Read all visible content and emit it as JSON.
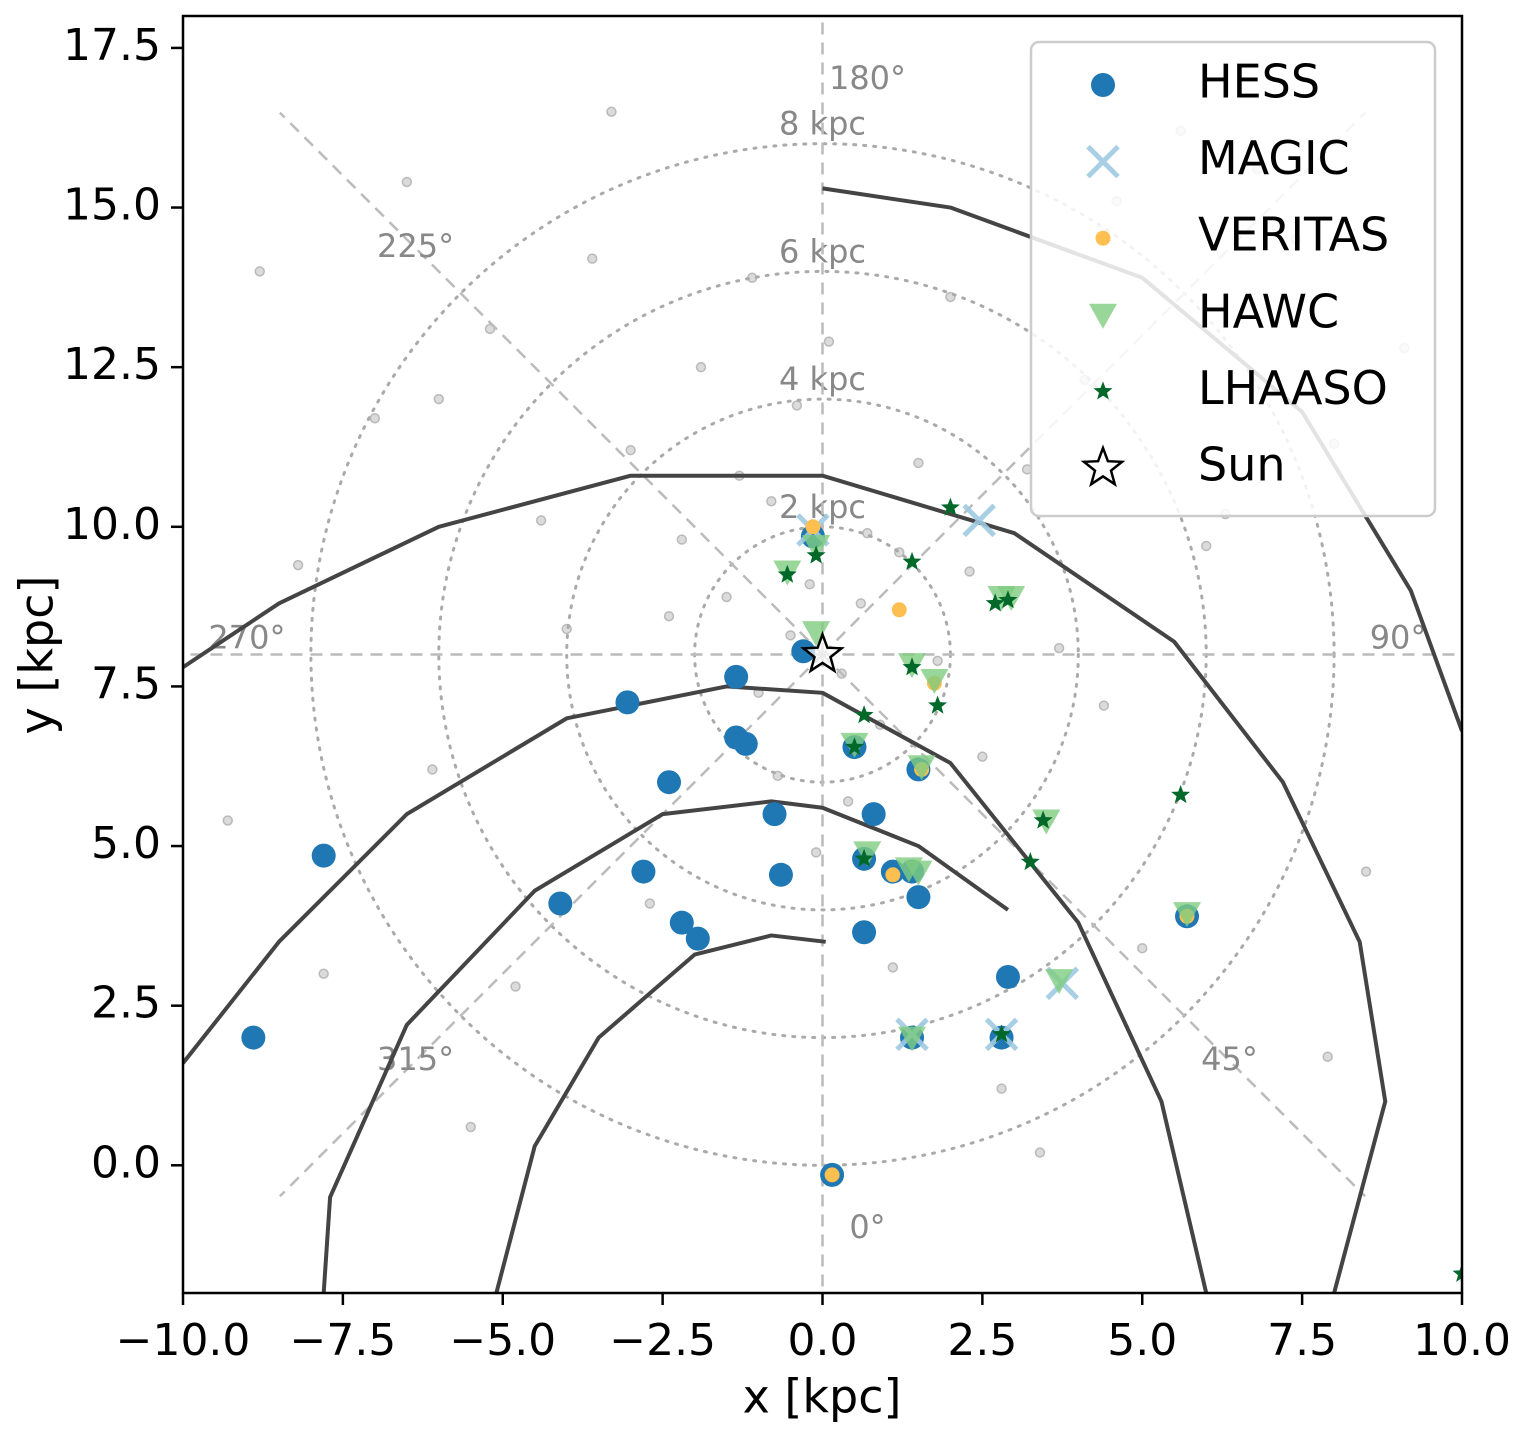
{
  "chart_data": {
    "type": "scatter",
    "xlabel": "x [kpc]",
    "ylabel": "y [kpc]",
    "xlim": [
      -10,
      10
    ],
    "ylim": [
      -2,
      18
    ],
    "xticks": [
      {
        "value": -10,
        "label": "−10.0"
      },
      {
        "value": -7.5,
        "label": "−7.5"
      },
      {
        "value": -5,
        "label": "−5.0"
      },
      {
        "value": -2.5,
        "label": "−2.5"
      },
      {
        "value": 0,
        "label": "0.0"
      },
      {
        "value": 2.5,
        "label": "2.5"
      },
      {
        "value": 5,
        "label": "5.0"
      },
      {
        "value": 7.5,
        "label": "7.5"
      },
      {
        "value": 10,
        "label": "10.0"
      }
    ],
    "yticks": [
      {
        "value": 0,
        "label": "0.0"
      },
      2.5,
      {
        "value": 5,
        "label": "5.0"
      },
      7.5,
      {
        "value": 10,
        "label": "10.0"
      },
      12.5,
      {
        "value": 15,
        "label": "15.0"
      },
      17.5
    ],
    "legend": "upper right",
    "sun": {
      "name": "Sun",
      "x": 0,
      "y": 8
    },
    "rings": [
      2,
      4,
      6,
      8
    ],
    "ring_labels": [
      "2 kpc",
      "4 kpc",
      "6 kpc",
      "8 kpc"
    ],
    "angles": [
      0,
      45,
      90,
      135,
      180,
      225,
      270,
      315
    ],
    "angle_labels": [
      "0°",
      "45°",
      "90°",
      null,
      "180°",
      "225°",
      "270°",
      "315°"
    ],
    "arms": [
      {
        "x": [
          0.05,
          -0.8,
          -2,
          -3.5,
          -4.5,
          -5.1
        ],
        "y": [
          3.5,
          3.6,
          3.3,
          2,
          0.3,
          -2
        ]
      },
      {
        "x": [
          2.9,
          1.5,
          0,
          -0.8,
          -2.5,
          -4.5,
          -6.5,
          -7.7,
          -7.8
        ],
        "y": [
          4.0,
          5.0,
          5.6,
          5.7,
          5.5,
          4.3,
          2.2,
          -0.5,
          -2
        ]
      },
      {
        "x": [
          6.0,
          5.3,
          4.0,
          2,
          0,
          -1.5,
          -4,
          -6.5,
          -8.5,
          -10
        ],
        "y": [
          -2,
          1,
          3.8,
          6.3,
          7.4,
          7.5,
          7,
          5.5,
          3.5,
          1.6
        ]
      },
      {
        "x": [
          8,
          8.8,
          8.4,
          7.2,
          5.5,
          3,
          0,
          -3,
          -6,
          -8.5,
          -10
        ],
        "y": [
          -2,
          1,
          3.5,
          6,
          8.2,
          9.9,
          10.8,
          10.8,
          10,
          8.8,
          7.8
        ]
      },
      {
        "x": [
          10,
          9.2,
          7.5,
          5,
          2,
          0
        ],
        "y": [
          6.8,
          9,
          11.8,
          13.9,
          15,
          15.3
        ]
      }
    ],
    "background": {
      "color": "#999999",
      "x": [
        -0.5,
        0.3,
        -0.2,
        0.6,
        -1.0,
        1.2,
        -1.5,
        0.9,
        -0.8,
        1.8,
        -2.2,
        2.5,
        -3.0,
        3.2,
        -4.0,
        4.1,
        -5.2,
        5.0,
        -6.1,
        6.3,
        -7.0,
        7.4,
        -8.2,
        8.5,
        -9.3,
        9.1,
        -0.4,
        0.4,
        -1.9,
        2.0,
        -2.7,
        2.8,
        -3.6,
        3.7,
        -4.8,
        4.6,
        0.1,
        -0.1,
        1.5,
        -1.3,
        -6.5,
        6.8,
        -7.8,
        7.9,
        -5.5,
        5.6,
        -3.3,
        3.4,
        -1.1,
        1.1,
        0.7,
        -0.7,
        2.3,
        -2.4,
        4.4,
        -4.4,
        6.0,
        -6.0,
        8.0,
        -8.8
      ],
      "y": [
        8.3,
        7.7,
        9.1,
        8.8,
        7.4,
        9.6,
        8.9,
        6.9,
        10.4,
        7.9,
        9.8,
        6.4,
        11.2,
        10.9,
        8.4,
        12.3,
        13.1,
        3.4,
        6.2,
        10.2,
        11.7,
        14.5,
        9.4,
        4.6,
        5.4,
        12.8,
        11.9,
        5.7,
        12.5,
        13.6,
        4.1,
        1.2,
        14.2,
        8.1,
        2.8,
        15.1,
        12.9,
        4.9,
        11.0,
        10.8,
        15.4,
        15.6,
        3.0,
        1.7,
        0.6,
        16.2,
        16.5,
        0.2,
        13.9,
        3.1,
        9.9,
        6.1,
        9.3,
        8.6,
        7.2,
        10.1,
        9.7,
        12.0,
        11.3,
        14.0
      ]
    },
    "series": [
      {
        "name": "HESS",
        "color": "#1f77b4",
        "marker": "o",
        "x": [
          -8.9,
          -7.8,
          -4.1,
          -3.05,
          -2.8,
          -2.4,
          -2.2,
          -1.95,
          -1.35,
          -1.35,
          -1.2,
          -0.75,
          -0.65,
          -0.3,
          0.15,
          0.5,
          0.65,
          0.65,
          0.8,
          1.1,
          1.4,
          1.5,
          1.5,
          1.4,
          2.8,
          2.9,
          5.7,
          -0.15
        ],
        "values": [
          2.0,
          4.85,
          4.1,
          7.25,
          4.6,
          6.0,
          3.8,
          3.55,
          7.65,
          6.7,
          6.6,
          5.5,
          4.55,
          8.05,
          -0.15,
          6.55,
          3.65,
          4.8,
          5.5,
          4.6,
          4.6,
          4.2,
          6.2,
          2.0,
          2.0,
          2.95,
          3.9,
          9.85
        ]
      },
      {
        "name": "MAGIC",
        "color": "#9ecae1",
        "marker": "x",
        "x": [
          2.45,
          1.4,
          2.8,
          3.75,
          -0.15
        ],
        "values": [
          10.1,
          2.05,
          2.05,
          2.85,
          9.95
        ]
      },
      {
        "name": "VERITAS",
        "color": "#fdbf4f",
        "marker": ".",
        "x": [
          -0.15,
          1.2,
          1.75,
          1.55,
          1.1,
          0.15,
          5.7
        ],
        "values": [
          10.0,
          8.7,
          7.55,
          6.2,
          4.55,
          -0.15,
          3.9
        ]
      },
      {
        "name": "HAWC",
        "color": "#7fcc7f",
        "marker": "v",
        "x": [
          -0.55,
          -0.1,
          -0.1,
          0.5,
          1.55,
          1.75,
          1.4,
          2.8,
          2.95,
          0.7,
          1.35,
          1.5,
          3.5,
          3.7,
          1.4,
          5.7
        ],
        "values": [
          9.3,
          9.7,
          8.35,
          6.6,
          6.25,
          7.6,
          7.85,
          8.9,
          8.9,
          4.9,
          4.65,
          4.6,
          5.4,
          2.9,
          2.0,
          3.95
        ]
      },
      {
        "name": "LHAASO",
        "color": "#00692a",
        "marker": "*",
        "x": [
          2.0,
          -0.1,
          -0.55,
          1.4,
          2.7,
          2.9,
          1.4,
          1.8,
          0.65,
          0.5,
          0.65,
          3.25,
          3.45,
          5.6,
          2.8,
          10
        ],
        "values": [
          10.3,
          9.55,
          9.25,
          9.45,
          8.8,
          8.85,
          7.8,
          7.2,
          7.05,
          6.55,
          4.8,
          4.75,
          5.4,
          5.8,
          2.05,
          -1.7
        ]
      }
    ]
  }
}
